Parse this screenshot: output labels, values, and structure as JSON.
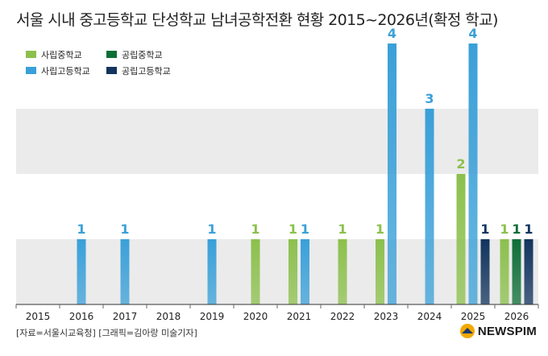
{
  "title": "서울 시내 중고등학교 단성학교 남녀공학전환 현황 2015~2026년(확정 학교)",
  "source": "[자료=서울시교육청] [그래픽=김아랑 미술기자]",
  "brand": {
    "name": "NEWSPIM"
  },
  "chart_data": {
    "type": "bar",
    "categories": [
      "2015",
      "2016",
      "2017",
      "2018",
      "2019",
      "2020",
      "2021",
      "2022",
      "2023",
      "2024",
      "2025",
      "2026"
    ],
    "series": [
      {
        "name": "사립중학교",
        "color": "#8cc04d",
        "values": [
          0,
          0,
          0,
          0,
          0,
          1,
          1,
          1,
          1,
          0,
          2,
          1
        ]
      },
      {
        "name": "사립고등학교",
        "color": "#3aa0d8",
        "values": [
          0,
          1,
          1,
          0,
          1,
          0,
          1,
          0,
          4,
          3,
          4,
          0
        ]
      },
      {
        "name": "공립중학교",
        "color": "#0e6e38",
        "values": [
          0,
          0,
          0,
          0,
          0,
          0,
          0,
          0,
          0,
          0,
          0,
          1
        ]
      },
      {
        "name": "공립고등학교",
        "color": "#12345e",
        "values": [
          0,
          0,
          0,
          0,
          0,
          0,
          0,
          0,
          0,
          0,
          1,
          1
        ]
      }
    ],
    "ylim": [
      0,
      4
    ],
    "grid": "horizontal bands",
    "legend_position": "top-left"
  }
}
